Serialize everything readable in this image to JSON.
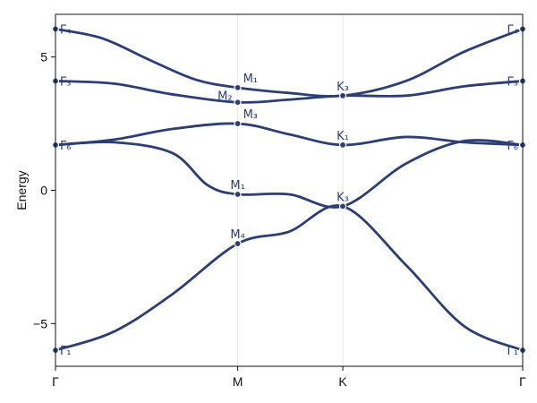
{
  "chart_data": {
    "type": "line",
    "title": "",
    "xlabel": "",
    "ylabel": "Energy",
    "ylim": [
      -6.6,
      6.6
    ],
    "xlim": [
      0,
      4
    ],
    "x_ticks": [
      {
        "x": 0,
        "label": "Γ"
      },
      {
        "x": 1.56,
        "label": "M"
      },
      {
        "x": 2.46,
        "label": "K"
      },
      {
        "x": 4,
        "label": "Γ"
      }
    ],
    "y_ticks": [
      {
        "y": -5,
        "label": "−5"
      },
      {
        "y": 0,
        "label": "0"
      },
      {
        "y": 5,
        "label": "5"
      }
    ],
    "grid": "vertical lines at high-symmetry points",
    "line_color": "#2c3e73",
    "grid_color": "#e6e6e6",
    "series": [
      {
        "points": [
          [
            0,
            6.05
          ],
          [
            0.4,
            5.7
          ],
          [
            0.8,
            4.9
          ],
          [
            1.2,
            4.15
          ],
          [
            1.56,
            3.85
          ],
          [
            2.0,
            3.65
          ],
          [
            2.46,
            3.55
          ],
          [
            3.0,
            4.1
          ],
          [
            3.5,
            5.2
          ],
          [
            4,
            6.05
          ]
        ]
      },
      {
        "points": [
          [
            0,
            4.1
          ],
          [
            0.5,
            4.0
          ],
          [
            1.0,
            3.6
          ],
          [
            1.56,
            3.3
          ],
          [
            2.0,
            3.4
          ],
          [
            2.46,
            3.55
          ],
          [
            3.0,
            3.55
          ],
          [
            3.5,
            3.9
          ],
          [
            4,
            4.1
          ]
        ]
      },
      {
        "points": [
          [
            0,
            1.7
          ],
          [
            0.5,
            1.9
          ],
          [
            1.0,
            2.3
          ],
          [
            1.56,
            2.5
          ],
          [
            2.0,
            2.1
          ],
          [
            2.46,
            1.7
          ],
          [
            3.0,
            2.0
          ],
          [
            3.5,
            1.8
          ],
          [
            4,
            1.7
          ]
        ]
      },
      {
        "points": [
          [
            0,
            1.7
          ],
          [
            0.5,
            1.8
          ],
          [
            1.0,
            1.4
          ],
          [
            1.3,
            0.2
          ],
          [
            1.56,
            -0.15
          ],
          [
            2.0,
            -0.15
          ],
          [
            2.46,
            -0.6
          ],
          [
            3.0,
            1.0
          ],
          [
            3.5,
            1.85
          ],
          [
            4,
            1.7
          ]
        ]
      },
      {
        "points": [
          [
            0,
            -6.0
          ],
          [
            0.5,
            -5.3
          ],
          [
            1.0,
            -3.9
          ],
          [
            1.56,
            -2.0
          ],
          [
            2.0,
            -1.55
          ],
          [
            2.46,
            -0.6
          ],
          [
            3.0,
            -2.8
          ],
          [
            3.5,
            -5.1
          ],
          [
            4,
            -6.0
          ]
        ]
      }
    ],
    "markers": [
      {
        "x": 0,
        "y": 6.05,
        "label": "Γ₄",
        "pos": "right"
      },
      {
        "x": 0,
        "y": 4.1,
        "label": "Γ₃",
        "pos": "right"
      },
      {
        "x": 0,
        "y": 1.7,
        "label": "Γ₆",
        "pos": "right"
      },
      {
        "x": 0,
        "y": -6.0,
        "label": "Γ₁",
        "pos": "right"
      },
      {
        "x": 1.56,
        "y": 3.85,
        "label": "M₁",
        "pos": "above-right"
      },
      {
        "x": 1.56,
        "y": 3.3,
        "label": "M₂",
        "pos": "above-left"
      },
      {
        "x": 1.56,
        "y": 2.5,
        "label": "M₃",
        "pos": "above-right"
      },
      {
        "x": 1.56,
        "y": -0.15,
        "label": "M₁",
        "pos": "above"
      },
      {
        "x": 1.56,
        "y": -2.0,
        "label": "M₄",
        "pos": "above"
      },
      {
        "x": 2.46,
        "y": 3.55,
        "label": "K₃",
        "pos": "above"
      },
      {
        "x": 2.46,
        "y": 1.7,
        "label": "K₁",
        "pos": "above"
      },
      {
        "x": 2.46,
        "y": -0.6,
        "label": "K₃",
        "pos": "above"
      },
      {
        "x": 4,
        "y": 6.05,
        "label": "Γ₄",
        "pos": "left"
      },
      {
        "x": 4,
        "y": 4.1,
        "label": "Γ₃",
        "pos": "left"
      },
      {
        "x": 4,
        "y": 1.7,
        "label": "Γ₆",
        "pos": "left"
      },
      {
        "x": 4,
        "y": -6.0,
        "label": "Γ₁",
        "pos": "left"
      }
    ]
  }
}
